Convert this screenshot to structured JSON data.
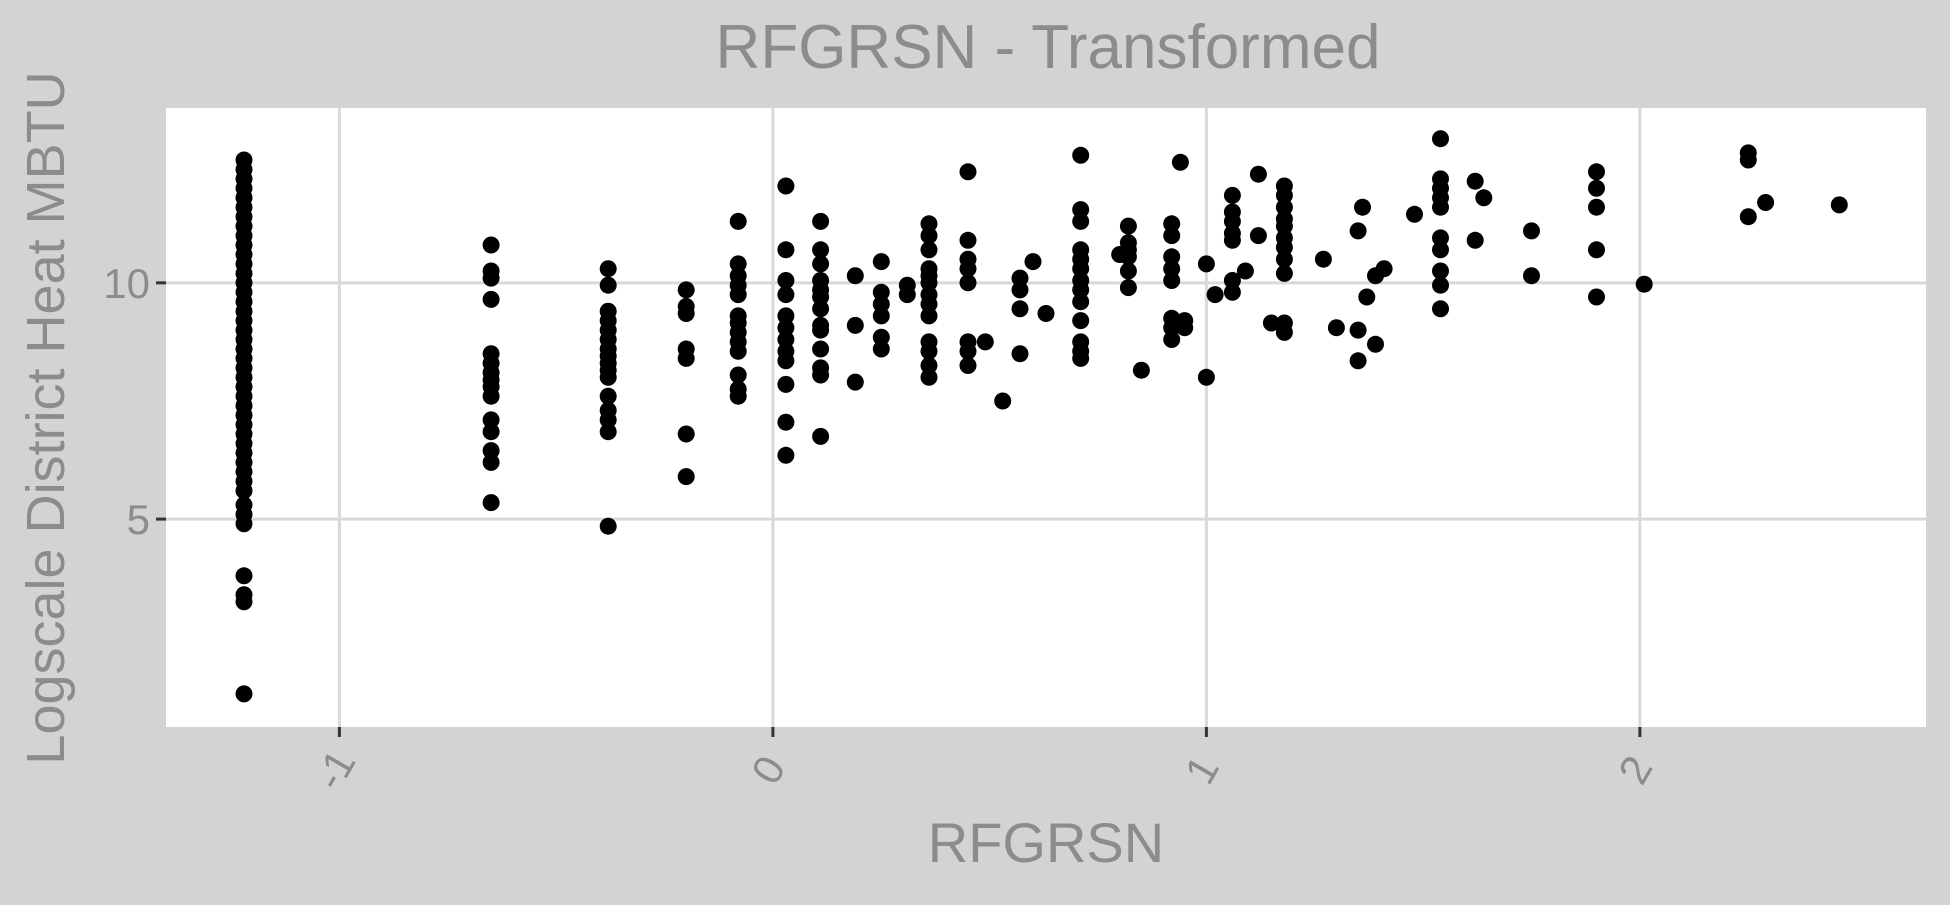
{
  "chart_data": {
    "type": "scatter",
    "title": "RFGRSN - Transformed",
    "xlabel": "RFGRSN",
    "ylabel": "Logscale District Heat MBTU",
    "xlim": [
      -1.4,
      2.66
    ],
    "ylim": [
      0.6,
      13.7
    ],
    "x_ticks": [
      -1,
      0,
      1,
      2
    ],
    "x_tick_labels": [
      "-1",
      "0",
      "1",
      "2"
    ],
    "y_ticks": [
      5,
      10
    ],
    "y_tick_labels": [
      "5",
      "10"
    ],
    "grid": true,
    "legend": "none",
    "colors": {
      "background": "#d3d3d3",
      "panel": "#ffffff",
      "grid": "#d9d9d9",
      "text": "#8c8c8c",
      "points": "#000000"
    },
    "points": [
      [
        -1.22,
        12.6
      ],
      [
        -1.22,
        12.4
      ],
      [
        -1.22,
        12.2
      ],
      [
        -1.22,
        12.0
      ],
      [
        -1.22,
        11.8
      ],
      [
        -1.22,
        11.6
      ],
      [
        -1.22,
        11.4
      ],
      [
        -1.22,
        11.2
      ],
      [
        -1.22,
        11.0
      ],
      [
        -1.22,
        10.8
      ],
      [
        -1.22,
        10.6
      ],
      [
        -1.22,
        10.4
      ],
      [
        -1.22,
        10.2
      ],
      [
        -1.22,
        10.0
      ],
      [
        -1.22,
        9.8
      ],
      [
        -1.22,
        9.6
      ],
      [
        -1.22,
        9.4
      ],
      [
        -1.22,
        9.2
      ],
      [
        -1.22,
        9.0
      ],
      [
        -1.22,
        8.8
      ],
      [
        -1.22,
        8.6
      ],
      [
        -1.22,
        8.4
      ],
      [
        -1.22,
        8.2
      ],
      [
        -1.22,
        8.0
      ],
      [
        -1.22,
        7.8
      ],
      [
        -1.22,
        7.6
      ],
      [
        -1.22,
        7.4
      ],
      [
        -1.22,
        7.2
      ],
      [
        -1.22,
        7.0
      ],
      [
        -1.22,
        6.8
      ],
      [
        -1.22,
        6.6
      ],
      [
        -1.22,
        6.4
      ],
      [
        -1.22,
        6.2
      ],
      [
        -1.22,
        6.0
      ],
      [
        -1.22,
        5.8
      ],
      [
        -1.22,
        5.6
      ],
      [
        -1.22,
        5.3
      ],
      [
        -1.22,
        5.1
      ],
      [
        -1.22,
        4.9
      ],
      [
        -1.22,
        3.8
      ],
      [
        -1.22,
        3.4
      ],
      [
        -1.22,
        3.25
      ],
      [
        -1.22,
        1.3
      ],
      [
        -0.65,
        10.8
      ],
      [
        -0.65,
        10.25
      ],
      [
        -0.65,
        10.1
      ],
      [
        -0.65,
        9.65
      ],
      [
        -0.65,
        8.5
      ],
      [
        -0.65,
        8.3
      ],
      [
        -0.65,
        8.1
      ],
      [
        -0.65,
        7.95
      ],
      [
        -0.65,
        7.8
      ],
      [
        -0.65,
        7.6
      ],
      [
        -0.65,
        7.1
      ],
      [
        -0.65,
        6.85
      ],
      [
        -0.65,
        6.45
      ],
      [
        -0.65,
        6.2
      ],
      [
        -0.65,
        5.35
      ],
      [
        -0.38,
        10.3
      ],
      [
        -0.38,
        9.95
      ],
      [
        -0.38,
        9.4
      ],
      [
        -0.38,
        9.2
      ],
      [
        -0.38,
        9.0
      ],
      [
        -0.38,
        8.8
      ],
      [
        -0.38,
        8.6
      ],
      [
        -0.38,
        8.45
      ],
      [
        -0.38,
        8.3
      ],
      [
        -0.38,
        8.15
      ],
      [
        -0.38,
        8.0
      ],
      [
        -0.38,
        7.6
      ],
      [
        -0.38,
        7.3
      ],
      [
        -0.38,
        7.1
      ],
      [
        -0.38,
        6.85
      ],
      [
        -0.38,
        4.85
      ],
      [
        -0.2,
        9.85
      ],
      [
        -0.2,
        9.5
      ],
      [
        -0.2,
        9.35
      ],
      [
        -0.2,
        8.6
      ],
      [
        -0.2,
        8.4
      ],
      [
        -0.2,
        6.8
      ],
      [
        -0.2,
        5.9
      ],
      [
        -0.08,
        11.3
      ],
      [
        -0.08,
        10.4
      ],
      [
        -0.08,
        10.15
      ],
      [
        -0.08,
        9.95
      ],
      [
        -0.08,
        9.75
      ],
      [
        -0.08,
        9.3
      ],
      [
        -0.08,
        9.15
      ],
      [
        -0.08,
        8.95
      ],
      [
        -0.08,
        8.75
      ],
      [
        -0.08,
        8.55
      ],
      [
        -0.08,
        8.05
      ],
      [
        -0.08,
        7.75
      ],
      [
        -0.08,
        7.6
      ],
      [
        0.03,
        12.05
      ],
      [
        0.03,
        10.7
      ],
      [
        0.03,
        10.05
      ],
      [
        0.03,
        9.75
      ],
      [
        0.03,
        9.3
      ],
      [
        0.03,
        9.05
      ],
      [
        0.03,
        8.8
      ],
      [
        0.03,
        8.55
      ],
      [
        0.03,
        8.35
      ],
      [
        0.03,
        7.85
      ],
      [
        0.03,
        7.05
      ],
      [
        0.03,
        6.35
      ],
      [
        0.11,
        11.3
      ],
      [
        0.11,
        10.7
      ],
      [
        0.11,
        10.4
      ],
      [
        0.11,
        10.05
      ],
      [
        0.11,
        9.85
      ],
      [
        0.11,
        9.7
      ],
      [
        0.11,
        9.45
      ],
      [
        0.11,
        9.1
      ],
      [
        0.11,
        9.0
      ],
      [
        0.11,
        8.6
      ],
      [
        0.11,
        8.2
      ],
      [
        0.11,
        8.05
      ],
      [
        0.11,
        6.75
      ],
      [
        0.19,
        10.15
      ],
      [
        0.19,
        9.1
      ],
      [
        0.19,
        7.9
      ],
      [
        0.25,
        10.45
      ],
      [
        0.25,
        9.8
      ],
      [
        0.25,
        9.55
      ],
      [
        0.25,
        9.3
      ],
      [
        0.25,
        8.85
      ],
      [
        0.25,
        8.6
      ],
      [
        0.31,
        9.95
      ],
      [
        0.31,
        9.75
      ],
      [
        0.36,
        11.25
      ],
      [
        0.36,
        11.0
      ],
      [
        0.36,
        10.7
      ],
      [
        0.36,
        10.3
      ],
      [
        0.36,
        10.15
      ],
      [
        0.36,
        10.0
      ],
      [
        0.36,
        9.75
      ],
      [
        0.36,
        9.55
      ],
      [
        0.36,
        9.3
      ],
      [
        0.36,
        8.75
      ],
      [
        0.36,
        8.55
      ],
      [
        0.36,
        8.25
      ],
      [
        0.36,
        8.0
      ],
      [
        0.45,
        12.35
      ],
      [
        0.45,
        10.9
      ],
      [
        0.45,
        10.5
      ],
      [
        0.45,
        10.3
      ],
      [
        0.45,
        10.0
      ],
      [
        0.45,
        8.75
      ],
      [
        0.45,
        8.55
      ],
      [
        0.45,
        8.25
      ],
      [
        0.49,
        8.75
      ],
      [
        0.53,
        7.5
      ],
      [
        0.57,
        10.1
      ],
      [
        0.57,
        9.85
      ],
      [
        0.57,
        9.45
      ],
      [
        0.57,
        8.5
      ],
      [
        0.6,
        10.45
      ],
      [
        0.63,
        9.35
      ],
      [
        0.71,
        12.7
      ],
      [
        0.71,
        11.55
      ],
      [
        0.71,
        11.3
      ],
      [
        0.71,
        10.7
      ],
      [
        0.71,
        10.5
      ],
      [
        0.71,
        10.3
      ],
      [
        0.71,
        10.05
      ],
      [
        0.71,
        9.85
      ],
      [
        0.71,
        9.6
      ],
      [
        0.71,
        9.2
      ],
      [
        0.71,
        8.75
      ],
      [
        0.71,
        8.55
      ],
      [
        0.71,
        8.4
      ],
      [
        0.8,
        10.6
      ],
      [
        0.82,
        11.2
      ],
      [
        0.82,
        10.85
      ],
      [
        0.82,
        10.7
      ],
      [
        0.82,
        10.55
      ],
      [
        0.82,
        10.25
      ],
      [
        0.82,
        9.9
      ],
      [
        0.85,
        8.15
      ],
      [
        0.92,
        11.25
      ],
      [
        0.92,
        11.0
      ],
      [
        0.92,
        10.55
      ],
      [
        0.92,
        10.3
      ],
      [
        0.92,
        10.05
      ],
      [
        0.92,
        9.25
      ],
      [
        0.92,
        9.05
      ],
      [
        0.92,
        8.8
      ],
      [
        0.94,
        12.55
      ],
      [
        0.95,
        9.05
      ],
      [
        0.95,
        9.2
      ],
      [
        1.0,
        8.0
      ],
      [
        1.0,
        10.4
      ],
      [
        1.02,
        9.75
      ],
      [
        1.06,
        11.85
      ],
      [
        1.06,
        11.5
      ],
      [
        1.06,
        11.3
      ],
      [
        1.06,
        11.05
      ],
      [
        1.06,
        10.9
      ],
      [
        1.06,
        10.05
      ],
      [
        1.06,
        9.8
      ],
      [
        1.09,
        10.25
      ],
      [
        1.12,
        12.3
      ],
      [
        1.12,
        11.0
      ],
      [
        1.15,
        9.15
      ],
      [
        1.18,
        12.05
      ],
      [
        1.18,
        11.85
      ],
      [
        1.18,
        11.6
      ],
      [
        1.18,
        11.35
      ],
      [
        1.18,
        11.2
      ],
      [
        1.18,
        10.95
      ],
      [
        1.18,
        10.75
      ],
      [
        1.18,
        10.5
      ],
      [
        1.18,
        10.2
      ],
      [
        1.18,
        9.15
      ],
      [
        1.18,
        8.95
      ],
      [
        1.27,
        10.5
      ],
      [
        1.3,
        9.05
      ],
      [
        1.35,
        11.1
      ],
      [
        1.35,
        9.0
      ],
      [
        1.35,
        8.35
      ],
      [
        1.36,
        11.6
      ],
      [
        1.37,
        9.7
      ],
      [
        1.39,
        10.15
      ],
      [
        1.39,
        8.7
      ],
      [
        1.41,
        10.3
      ],
      [
        1.48,
        11.45
      ],
      [
        1.54,
        13.05
      ],
      [
        1.54,
        12.2
      ],
      [
        1.54,
        12.0
      ],
      [
        1.54,
        11.8
      ],
      [
        1.54,
        11.6
      ],
      [
        1.54,
        10.95
      ],
      [
        1.54,
        10.7
      ],
      [
        1.54,
        10.25
      ],
      [
        1.54,
        9.95
      ],
      [
        1.54,
        9.45
      ],
      [
        1.62,
        12.15
      ],
      [
        1.62,
        10.9
      ],
      [
        1.64,
        11.8
      ],
      [
        1.75,
        11.1
      ],
      [
        1.75,
        10.15
      ],
      [
        1.9,
        12.35
      ],
      [
        1.9,
        12.0
      ],
      [
        1.9,
        11.6
      ],
      [
        1.9,
        10.7
      ],
      [
        1.9,
        9.7
      ],
      [
        2.01,
        9.97
      ],
      [
        2.25,
        12.75
      ],
      [
        2.25,
        12.6
      ],
      [
        2.25,
        11.4
      ],
      [
        2.29,
        11.7
      ],
      [
        2.46,
        11.65
      ]
    ]
  }
}
